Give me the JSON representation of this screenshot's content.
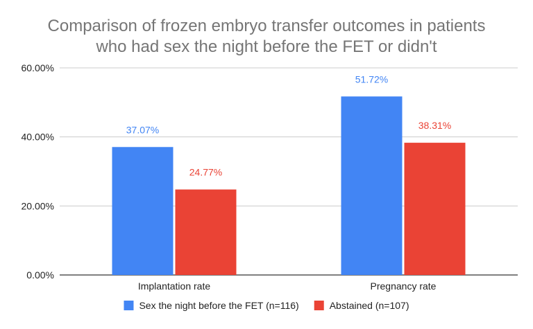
{
  "chart_data": {
    "type": "bar",
    "title_lines": [
      "Comparison of frozen embryo transfer outcomes in patients",
      "who had sex the night before the FET or didn't"
    ],
    "categories": [
      "Implantation rate",
      "Pregnancy rate"
    ],
    "series": [
      {
        "name": "Sex the night before the FET (n=116)",
        "values": [
          37.07,
          51.72
        ],
        "labels": [
          "37.07%",
          "51.72%"
        ],
        "color": "#4285f4"
      },
      {
        "name": "Abstained (n=107)",
        "values": [
          24.77,
          38.31
        ],
        "labels": [
          "24.77%",
          "38.31%"
        ],
        "color": "#ea4335"
      }
    ],
    "yticks": [
      0,
      20,
      40,
      60
    ],
    "ytick_labels": [
      "0.00%",
      "20.00%",
      "40.00%",
      "60.00%"
    ],
    "ylim": [
      0,
      60
    ],
    "grid": true,
    "legend_position": "bottom"
  }
}
